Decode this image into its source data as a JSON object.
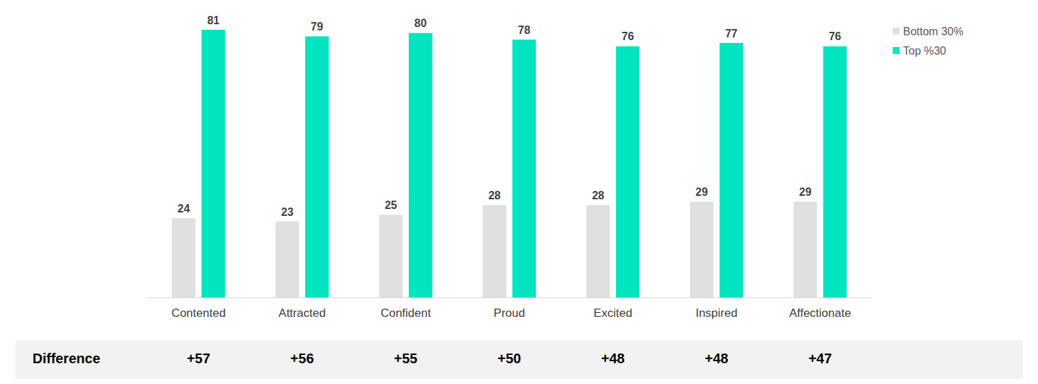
{
  "chart_data": {
    "type": "bar",
    "categories": [
      "Contented",
      "Attracted",
      "Confident",
      "Proud",
      "Excited",
      "Inspired",
      "Affectionate"
    ],
    "series": [
      {
        "name": "Bottom 30%",
        "color": "#e0e0e0",
        "values": [
          24,
          23,
          25,
          28,
          28,
          29,
          29
        ]
      },
      {
        "name": "Top %30",
        "color": "#00e5bf",
        "values": [
          81,
          79,
          80,
          78,
          76,
          77,
          76
        ]
      }
    ],
    "ylim": [
      0,
      90
    ],
    "yticks": [
      0,
      30,
      60,
      90
    ],
    "grid": false,
    "tick_labels": "x",
    "data_labels": true,
    "legend": "upper-right",
    "difference": {
      "label": "Difference",
      "values": [
        57,
        56,
        55,
        50,
        48,
        48,
        47
      ],
      "value_labels": [
        "+57",
        "+56",
        "+55",
        "+50",
        "+48",
        "+48",
        "+47"
      ]
    }
  }
}
